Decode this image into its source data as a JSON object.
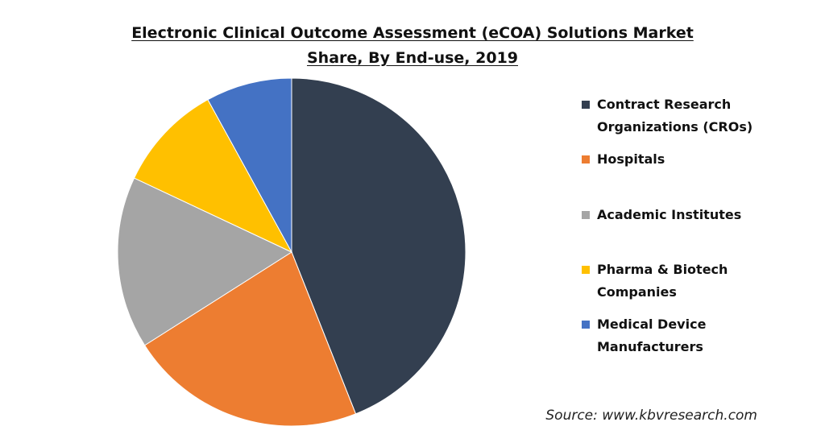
{
  "chart_data": {
    "type": "pie",
    "title": "Electronic Clinical Outcome Assessment (eCOA) Solutions Market Share, By End-use, 2019",
    "title_lines": [
      "Electronic Clinical Outcome Assessment (eCOA) Solutions Market",
      "Share, By End-use, 2019"
    ],
    "legend_position": "right",
    "slices": [
      {
        "label": "Contract Research Organizations (CROs)",
        "legend_lines": [
          "Contract Research",
          "Organizations (CROs)"
        ],
        "value": 44,
        "color": "#333f50"
      },
      {
        "label": "Hospitals",
        "legend_lines": [
          "Hospitals"
        ],
        "value": 22,
        "color": "#ed7d31"
      },
      {
        "label": "Academic Institutes",
        "legend_lines": [
          "Academic Institutes"
        ],
        "value": 16,
        "color": "#a5a5a5"
      },
      {
        "label": "Pharma & Biotech Companies",
        "legend_lines": [
          "Pharma & Biotech",
          "Companies"
        ],
        "value": 10,
        "color": "#ffc000"
      },
      {
        "label": "Medical Device Manufacturers",
        "legend_lines": [
          "Medical Device",
          "Manufacturers"
        ],
        "value": 8,
        "color": "#4472c4"
      }
    ]
  },
  "source": "Source: www.kbvresearch.com"
}
